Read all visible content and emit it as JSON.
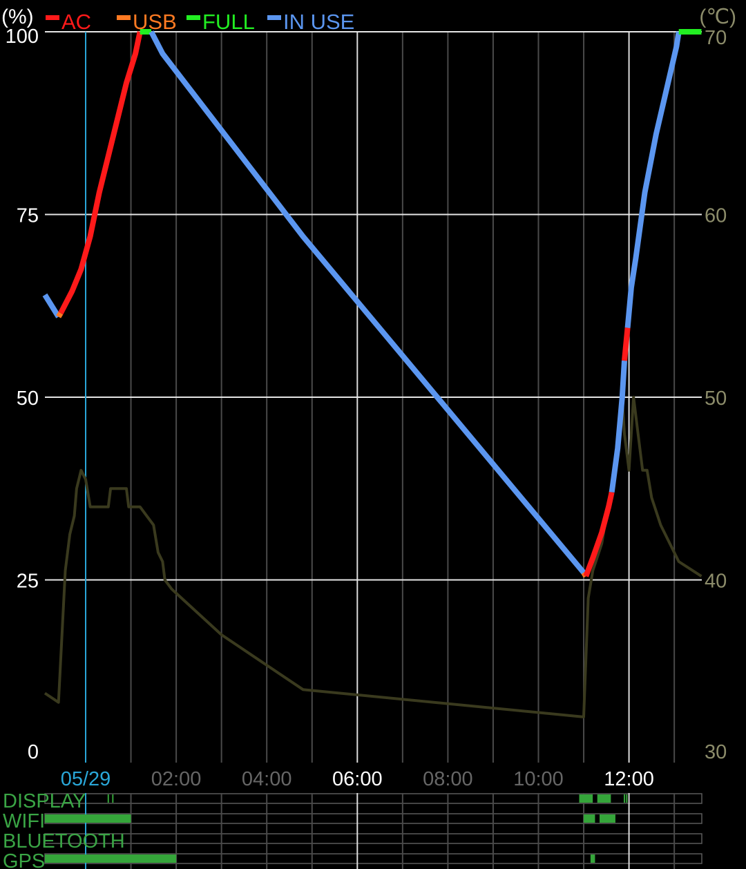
{
  "chart_data": {
    "type": "line",
    "left_unit": "(%)",
    "right_unit": "(℃)",
    "y_left": {
      "ticks": [
        0,
        25,
        50,
        75,
        100
      ],
      "range": [
        0,
        100
      ]
    },
    "y_right": {
      "ticks": [
        30,
        40,
        50,
        60,
        70
      ],
      "range": [
        30,
        70
      ]
    },
    "x_axis": {
      "unit": "hours since 00:00 05/29",
      "range": [
        -0.9,
        13.6
      ],
      "gridlines_hours": [
        -1,
        0,
        1,
        2,
        3,
        4,
        5,
        6,
        7,
        8,
        9,
        10,
        11,
        12,
        13
      ],
      "labels": [
        {
          "text": "05/29",
          "hour": 0,
          "color": "#2aa7d8",
          "marker": true
        },
        {
          "text": "02:00",
          "hour": 2,
          "color": "#666666"
        },
        {
          "text": "04:00",
          "hour": 4,
          "color": "#666666"
        },
        {
          "text": "06:00",
          "hour": 6,
          "color": "#ffffff",
          "bright": true
        },
        {
          "text": "08:00",
          "hour": 8,
          "color": "#666666"
        },
        {
          "text": "10:00",
          "hour": 10,
          "color": "#666666"
        },
        {
          "text": "12:00",
          "hour": 12,
          "color": "#ffffff",
          "bright": true
        }
      ]
    },
    "legend": [
      {
        "name": "AC",
        "color": "#ff1a1a"
      },
      {
        "name": "USB",
        "color": "#ff7a22"
      },
      {
        "name": "FULL",
        "color": "#22ee22"
      },
      {
        "name": "IN USE",
        "color": "#5b96f0"
      }
    ],
    "battery_series": [
      {
        "state": "IN USE",
        "color": "#5b96f0",
        "points": [
          [
            -0.9,
            64
          ],
          [
            -0.6,
            61
          ]
        ]
      },
      {
        "state": "USB",
        "color": "#ff7a22",
        "points": [
          [
            -0.6,
            61
          ],
          [
            -0.55,
            61.5
          ]
        ]
      },
      {
        "state": "AC",
        "color": "#ff1a1a",
        "points": [
          [
            -0.55,
            61.5
          ],
          [
            -0.3,
            64.5
          ],
          [
            -0.1,
            67.5
          ],
          [
            0.1,
            72
          ],
          [
            0.3,
            78
          ],
          [
            0.5,
            83
          ],
          [
            0.7,
            88
          ],
          [
            0.9,
            93
          ],
          [
            1.1,
            97
          ],
          [
            1.2,
            100
          ]
        ]
      },
      {
        "state": "FULL",
        "color": "#22ee22",
        "points": [
          [
            1.2,
            100
          ],
          [
            1.45,
            100
          ]
        ]
      },
      {
        "state": "IN USE",
        "color": "#5b96f0",
        "points": [
          [
            1.45,
            100
          ],
          [
            1.7,
            97
          ],
          [
            4.8,
            72
          ],
          [
            11.0,
            26
          ]
        ]
      },
      {
        "state": "USB",
        "color": "#ff7a22",
        "points": [
          [
            11.0,
            26
          ],
          [
            11.05,
            25.5
          ]
        ]
      },
      {
        "state": "AC",
        "color": "#ff1a1a",
        "points": [
          [
            11.05,
            25.5
          ],
          [
            11.2,
            28
          ],
          [
            11.4,
            31.5
          ],
          [
            11.55,
            35
          ],
          [
            11.62,
            37
          ]
        ]
      },
      {
        "state": "IN USE",
        "color": "#5b96f0",
        "points": [
          [
            11.62,
            37
          ],
          [
            11.75,
            43
          ],
          [
            11.85,
            50
          ],
          [
            11.9,
            55
          ]
        ]
      },
      {
        "state": "AC",
        "color": "#ff1a1a",
        "points": [
          [
            11.9,
            55
          ],
          [
            11.97,
            59.5
          ]
        ]
      },
      {
        "state": "IN USE",
        "color": "#5b96f0",
        "points": [
          [
            11.97,
            59.5
          ],
          [
            12.05,
            65
          ],
          [
            12.15,
            69
          ],
          [
            12.35,
            78
          ],
          [
            12.6,
            86
          ],
          [
            12.9,
            94
          ],
          [
            13.05,
            98
          ],
          [
            13.1,
            100
          ]
        ]
      },
      {
        "state": "FULL",
        "color": "#22ee22",
        "points": [
          [
            13.1,
            100
          ],
          [
            13.6,
            100
          ]
        ]
      }
    ],
    "temperature_series": {
      "unit": "℃",
      "color": "#3a3a1e",
      "points": [
        [
          -0.9,
          33.8
        ],
        [
          -0.6,
          33.3
        ],
        [
          -0.45,
          40.5
        ],
        [
          -0.35,
          42.5
        ],
        [
          -0.25,
          43.5
        ],
        [
          -0.2,
          45
        ],
        [
          -0.1,
          46
        ],
        [
          0.0,
          45.5
        ],
        [
          0.1,
          44
        ],
        [
          0.5,
          44
        ],
        [
          0.55,
          45
        ],
        [
          0.9,
          45
        ],
        [
          0.95,
          44
        ],
        [
          1.2,
          44
        ],
        [
          1.35,
          43.5
        ],
        [
          1.5,
          43
        ],
        [
          1.6,
          41.5
        ],
        [
          1.7,
          41
        ],
        [
          1.75,
          40
        ],
        [
          1.9,
          39.5
        ],
        [
          3.0,
          37
        ],
        [
          4.8,
          34
        ],
        [
          11.0,
          32.5
        ],
        [
          11.1,
          39
        ],
        [
          11.2,
          40.5
        ],
        [
          11.4,
          42
        ],
        [
          11.6,
          45
        ],
        [
          11.75,
          47.5
        ],
        [
          11.85,
          50
        ],
        [
          11.9,
          48
        ],
        [
          12.0,
          46
        ],
        [
          12.1,
          50
        ],
        [
          12.2,
          48
        ],
        [
          12.3,
          46
        ],
        [
          12.4,
          46
        ],
        [
          12.5,
          44.5
        ],
        [
          12.7,
          43
        ],
        [
          12.9,
          42
        ],
        [
          13.1,
          41
        ],
        [
          13.6,
          40.2
        ]
      ]
    }
  },
  "status_rows": [
    {
      "label": "DISPLAY",
      "intervals": [
        [
          10.9,
          11.2
        ],
        [
          11.3,
          11.6
        ]
      ],
      "ticks": [
        0.5,
        0.6,
        11.9,
        11.95
      ]
    },
    {
      "label": "WIFI",
      "intervals": [
        [
          -0.9,
          1.0
        ],
        [
          11.0,
          11.25
        ],
        [
          11.35,
          11.7
        ]
      ],
      "ticks": []
    },
    {
      "label": "BLUETOOTH",
      "intervals": [],
      "ticks": []
    },
    {
      "label": "GPS",
      "intervals": [
        [
          -0.9,
          2.0
        ],
        [
          11.15,
          11.25
        ]
      ],
      "ticks": []
    }
  ]
}
